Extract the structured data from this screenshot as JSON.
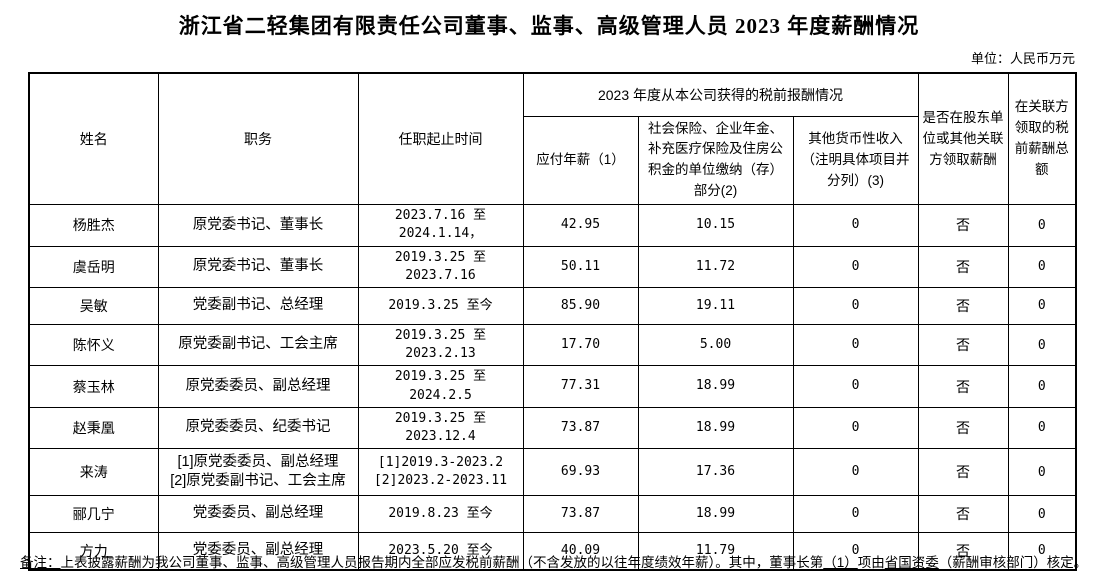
{
  "title": "浙江省二轻集团有限责任公司董事、监事、高级管理人员 2023 年度薪酬情况",
  "unit_note": "单位：人民币万元",
  "table": {
    "headers": {
      "name": "姓名",
      "position": "职务",
      "tenure": "任职起止时间",
      "compensation_group": "2023 年度从本公司获得的税前报酬情况",
      "salary": "应付年薪（1）",
      "insurance": "社会保险、企业年金、补充医疗保险及住房公积金的单位缴纳（存）部分(2)",
      "other_income": "其他货币性收入（注明具体项目并分列）(3)",
      "related_party_paid": "是否在股东单位或其他关联方领取薪酬",
      "related_party_total": "在关联方领取的税前薪酬总额"
    },
    "rows": [
      {
        "name": "杨胜杰",
        "position": "原党委书记、董事长",
        "tenure": "2023.7.16 至 2024.1.14，",
        "salary": "42.95",
        "insurance": "10.15",
        "other": "0",
        "related": "否",
        "related_total": "0"
      },
      {
        "name": "虞岳明",
        "position": "原党委书记、董事长",
        "tenure": "2019.3.25 至 2023.7.16",
        "salary": "50.11",
        "insurance": "11.72",
        "other": "0",
        "related": "否",
        "related_total": "0"
      },
      {
        "name": "吴敏",
        "position": "党委副书记、总经理",
        "tenure": "2019.3.25 至今",
        "salary": "85.90",
        "insurance": "19.11",
        "other": "0",
        "related": "否",
        "related_total": "0"
      },
      {
        "name": "陈怀义",
        "position": "原党委副书记、工会主席",
        "tenure": "2019.3.25 至 2023.2.13",
        "salary": "17.70",
        "insurance": "5.00",
        "other": "0",
        "related": "否",
        "related_total": "0"
      },
      {
        "name": "蔡玉林",
        "position": "原党委委员、副总经理",
        "tenure": "2019.3.25 至 2024.2.5",
        "salary": "77.31",
        "insurance": "18.99",
        "other": "0",
        "related": "否",
        "related_total": "0"
      },
      {
        "name": "赵秉凰",
        "position": "原党委委员、纪委书记",
        "tenure": "2019.3.25 至 2023.12.4",
        "salary": "73.87",
        "insurance": "18.99",
        "other": "0",
        "related": "否",
        "related_total": "0"
      },
      {
        "name": "来涛",
        "position": "[1]原党委委员、副总经理\n[2]原党委副书记、工会主席",
        "tenure": "[1]2019.3-2023.2\n[2]2023.2-2023.11",
        "salary": "69.93",
        "insurance": "17.36",
        "other": "0",
        "related": "否",
        "related_total": "0"
      },
      {
        "name": "郦几宁",
        "position": "党委委员、副总经理",
        "tenure": "2019.8.23 至今",
        "salary": "73.87",
        "insurance": "18.99",
        "other": "0",
        "related": "否",
        "related_total": "0"
      },
      {
        "name": "方力",
        "position": "党委委员、副总经理",
        "tenure": "2023.5.20 至今",
        "salary": "40.09",
        "insurance": "11.79",
        "other": "0",
        "related": "否",
        "related_total": "0"
      }
    ]
  },
  "footnote": {
    "segments": [
      {
        "text": "备注：",
        "underline": true
      },
      {
        "text": "上表披露薪酬为我公司董事、监事、高级管理人员报告期内全部应发税前薪酬（不含发放的以往年度绩效年薪）。其中，董事长第",
        "underline": false
      },
      {
        "text": "（1）",
        "underline": true
      },
      {
        "text": "项由",
        "underline": false
      },
      {
        "text": "省国资委",
        "underline": true
      },
      {
        "text": "（薪酬审核部门）核定。",
        "underline": false
      }
    ]
  }
}
